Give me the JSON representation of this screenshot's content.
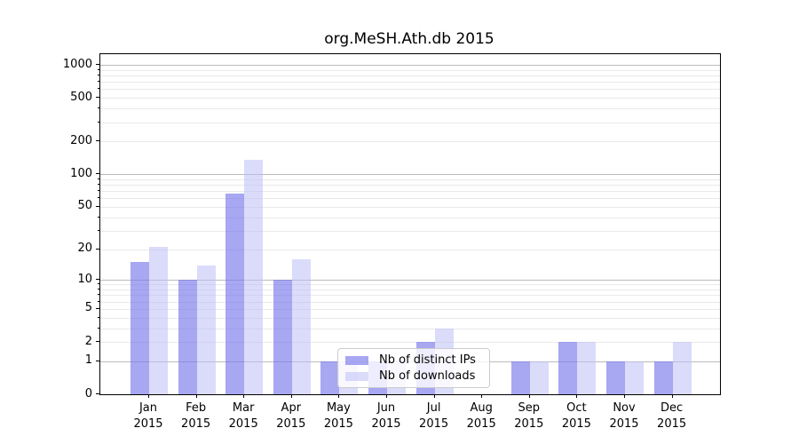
{
  "chart_data": {
    "type": "bar",
    "title": "org.MeSH.Ath.db 2015",
    "categories": [
      "Jan",
      "Feb",
      "Mar",
      "Apr",
      "May",
      "Jun",
      "Jul",
      "Aug",
      "Sep",
      "Oct",
      "Nov",
      "Dec"
    ],
    "x_tick_year": "2015",
    "series": [
      {
        "name": "Nb of distinct IPs",
        "color": "rgba(120,120,235,0.65)",
        "values": [
          15,
          10,
          66,
          10,
          1,
          1,
          2,
          0,
          1,
          2,
          1,
          1
        ]
      },
      {
        "name": "Nb of downloads",
        "color": "rgba(190,190,245,0.55)",
        "values": [
          21,
          14,
          135,
          16,
          1,
          1,
          3,
          0,
          1,
          2,
          1,
          2
        ]
      }
    ],
    "y_scale": "log1p",
    "ylim": [
      0,
      1000
    ],
    "y_ticks": [
      0,
      1,
      2,
      5,
      10,
      20,
      50,
      100,
      200,
      500,
      1000
    ],
    "y_major_gridlines": [
      1,
      10,
      100,
      1000
    ],
    "grid": true,
    "legend_position": "lower center-left inside plot"
  },
  "colors": {
    "background": "#ffffff",
    "spine": "#000000",
    "grid_major": "#bbbbbb",
    "grid_minor": "#e9e9ec",
    "text": "#000000",
    "legend_border": "#cccccc",
    "legend_background": "rgba(255,255,255,0.8)"
  }
}
